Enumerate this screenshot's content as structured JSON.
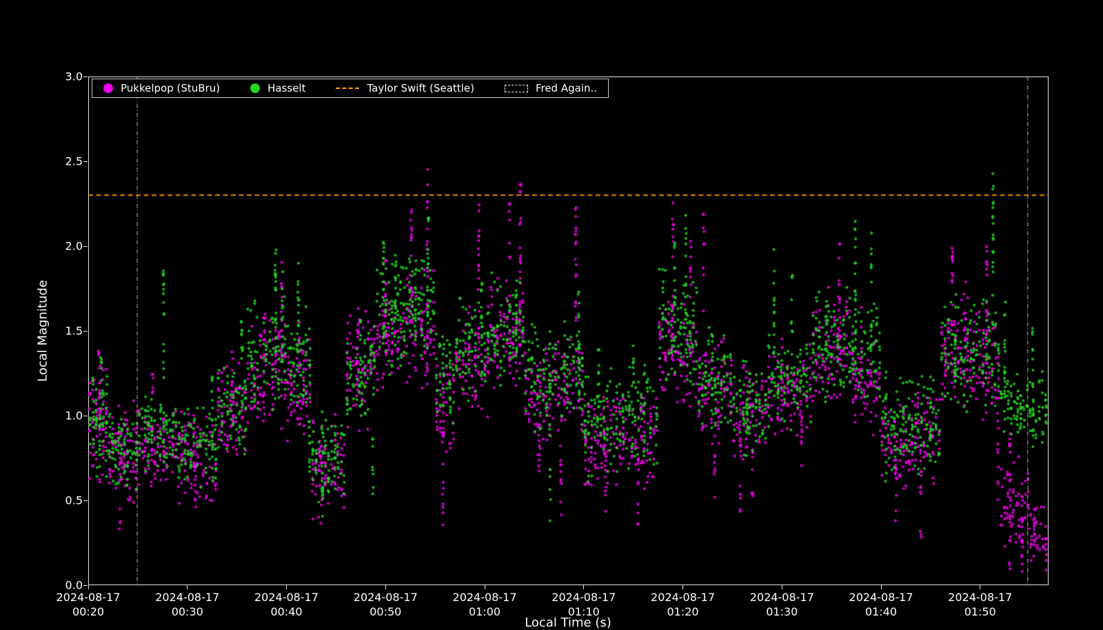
{
  "axes": {
    "xlabel": "Local Time (s)",
    "ylabel": "Local Magnitude",
    "x_ticks": [
      {
        "line1": "2024-08-17",
        "line2": "00:20",
        "minutes": 0
      },
      {
        "line1": "2024-08-17",
        "line2": "00:30",
        "minutes": 10
      },
      {
        "line1": "2024-08-17",
        "line2": "00:40",
        "minutes": 20
      },
      {
        "line1": "2024-08-17",
        "line2": "00:50",
        "minutes": 30
      },
      {
        "line1": "2024-08-17",
        "line2": "01:00",
        "minutes": 40
      },
      {
        "line1": "2024-08-17",
        "line2": "01:10",
        "minutes": 50
      },
      {
        "line1": "2024-08-17",
        "line2": "01:20",
        "minutes": 60
      },
      {
        "line1": "2024-08-17",
        "line2": "01:30",
        "minutes": 70
      },
      {
        "line1": "2024-08-17",
        "line2": "01:40",
        "minutes": 80
      },
      {
        "line1": "2024-08-17",
        "line2": "01:50",
        "minutes": 90
      }
    ],
    "y_ticks": [
      {
        "label": "0.0",
        "value": 0.0
      },
      {
        "label": "0.5",
        "value": 0.5
      },
      {
        "label": "1.0",
        "value": 1.0
      },
      {
        "label": "1.5",
        "value": 1.5
      },
      {
        "label": "2.0",
        "value": 2.0
      },
      {
        "label": "2.5",
        "value": 2.5
      },
      {
        "label": "3.0",
        "value": 3.0
      }
    ]
  },
  "legend": {
    "items": [
      {
        "marker": "dot",
        "color": "#f400ee",
        "label": "Pukkelpop (StuBru)"
      },
      {
        "marker": "dot",
        "color": "#23d423",
        "label": "Hasselt"
      },
      {
        "marker": "dash",
        "color": "#ffa500",
        "label": "Taylor Swift (Seattle)"
      },
      {
        "marker": "box",
        "color": "#f2f2f2",
        "label": "Fred Again.."
      }
    ]
  },
  "chart_data": {
    "type": "scatter",
    "title": "",
    "xlabel": "Local Time (s)",
    "ylabel": "Local Magnitude",
    "x_unit": "minutes after 2024-08-17 00:20",
    "xlim_minutes": [
      0,
      96.9
    ],
    "ylim": [
      0,
      3
    ],
    "grid": false,
    "legend_position": "upper left",
    "marker_radius_px": 2.1,
    "marker_alpha": 0.82,
    "reference_line": {
      "label": "Taylor Swift (Seattle)",
      "value": 2.3,
      "color": "#ffa500",
      "style": "dashed",
      "linewidth": 1.8
    },
    "span": {
      "label": "Fred Again..",
      "start_minutes": 4.94,
      "end_minutes": 94.8,
      "edge_color": "#c8c8c8",
      "style": "dashdot",
      "linewidth": 1
    },
    "series": [
      {
        "name": "Pukkelpop (StuBru)",
        "color": "#f400ee",
        "baseline_segments": [
          [
            0,
            2,
            0.55,
            1.4,
            70
          ],
          [
            2,
            5,
            0.45,
            1.1,
            85
          ],
          [
            5,
            9,
            0.55,
            1.05,
            95
          ],
          [
            9,
            13,
            0.45,
            1.05,
            95
          ],
          [
            13,
            16,
            0.7,
            1.35,
            70
          ],
          [
            16,
            20,
            0.9,
            1.6,
            90
          ],
          [
            20,
            22.5,
            0.8,
            1.5,
            60
          ],
          [
            22.5,
            26,
            0.35,
            1.05,
            80
          ],
          [
            26,
            29,
            0.8,
            1.65,
            70
          ],
          [
            29,
            32,
            1.1,
            1.8,
            70
          ],
          [
            32,
            35,
            1.1,
            1.9,
            70
          ],
          [
            35,
            37,
            0.7,
            1.4,
            45
          ],
          [
            37,
            40.5,
            0.95,
            1.7,
            80
          ],
          [
            40.5,
            44,
            1.1,
            1.85,
            85
          ],
          [
            44,
            47,
            0.75,
            1.45,
            70
          ],
          [
            47,
            50,
            0.85,
            1.5,
            70
          ],
          [
            50,
            53.5,
            0.5,
            1.15,
            80
          ],
          [
            53.5,
            57.5,
            0.55,
            1.2,
            85
          ],
          [
            57.5,
            61.5,
            1.0,
            1.8,
            90
          ],
          [
            61.5,
            65,
            0.8,
            1.5,
            80
          ],
          [
            65,
            68.5,
            0.7,
            1.3,
            75
          ],
          [
            68.5,
            73,
            0.85,
            1.45,
            90
          ],
          [
            73,
            77,
            1.0,
            1.8,
            90
          ],
          [
            77,
            80,
            0.85,
            1.5,
            65
          ],
          [
            80,
            83,
            0.55,
            1.15,
            65
          ],
          [
            83,
            86,
            0.55,
            1.2,
            65
          ],
          [
            86,
            89.5,
            1.0,
            1.75,
            80
          ],
          [
            89.5,
            92,
            0.9,
            1.7,
            55
          ],
          [
            92,
            95,
            0.15,
            0.8,
            65
          ],
          [
            95,
            96.8,
            0.05,
            0.5,
            35
          ]
        ],
        "burst_columns": [
          [
            1.1,
            0.9,
            1.42,
            12
          ],
          [
            3.2,
            0.33,
            0.75,
            10
          ],
          [
            6.5,
            0.75,
            1.25,
            10
          ],
          [
            10.8,
            0.27,
            0.7,
            10
          ],
          [
            14.5,
            0.9,
            1.38,
            10
          ],
          [
            17.8,
            1.0,
            1.6,
            12
          ],
          [
            19.5,
            1.1,
            1.95,
            14
          ],
          [
            21.3,
            0.9,
            1.55,
            12
          ],
          [
            23.5,
            0.3,
            0.95,
            10
          ],
          [
            27.2,
            1.0,
            1.68,
            14
          ],
          [
            30.0,
            1.2,
            1.95,
            14
          ],
          [
            32.6,
            1.35,
            2.27,
            18
          ],
          [
            34.2,
            1.2,
            2.46,
            22
          ],
          [
            35.8,
            0.3,
            0.95,
            14
          ],
          [
            39.4,
            1.3,
            2.27,
            18
          ],
          [
            42.5,
            1.3,
            2.28,
            16
          ],
          [
            43.6,
            1.4,
            2.4,
            20
          ],
          [
            45.5,
            0.55,
            1.1,
            10
          ],
          [
            47.7,
            0.4,
            0.9,
            10
          ],
          [
            49.2,
            1.3,
            2.3,
            18
          ],
          [
            52.2,
            0.32,
            0.85,
            12
          ],
          [
            55.5,
            0.3,
            0.8,
            10
          ],
          [
            59.0,
            1.3,
            2.29,
            20
          ],
          [
            60.8,
            1.2,
            2.05,
            14
          ],
          [
            62.1,
            1.1,
            2.2,
            12
          ],
          [
            63.2,
            0.45,
            0.9,
            8
          ],
          [
            65.8,
            0.4,
            0.85,
            8
          ],
          [
            67.0,
            0.45,
            0.95,
            8
          ],
          [
            70.0,
            1.0,
            1.5,
            10
          ],
          [
            72.0,
            0.5,
            1.0,
            10
          ],
          [
            75.8,
            1.3,
            2.16,
            18
          ],
          [
            78.0,
            1.1,
            1.7,
            12
          ],
          [
            81.5,
            0.3,
            0.85,
            12
          ],
          [
            84.0,
            0.25,
            0.8,
            12
          ],
          [
            87.2,
            1.2,
            2.0,
            16
          ],
          [
            88.5,
            1.1,
            1.8,
            12
          ],
          [
            90.7,
            1.3,
            2.02,
            16
          ],
          [
            91.8,
            0.5,
            1.3,
            12
          ],
          [
            93.0,
            0.05,
            0.9,
            18
          ],
          [
            94.2,
            0.03,
            0.6,
            14
          ],
          [
            95.5,
            0.05,
            0.45,
            10
          ]
        ]
      },
      {
        "name": "Hasselt",
        "color": "#23d423",
        "baseline_segments": [
          [
            0,
            2,
            0.6,
            1.3,
            60
          ],
          [
            2,
            5,
            0.55,
            1.05,
            75
          ],
          [
            5,
            9,
            0.6,
            1.15,
            95
          ],
          [
            9,
            13,
            0.55,
            1.1,
            95
          ],
          [
            13,
            16,
            0.75,
            1.3,
            70
          ],
          [
            16,
            20,
            1.0,
            1.75,
            90
          ],
          [
            20,
            22.5,
            0.9,
            1.7,
            60
          ],
          [
            22.5,
            26,
            0.45,
            1.05,
            80
          ],
          [
            26,
            29,
            0.85,
            1.55,
            70
          ],
          [
            29,
            32,
            1.2,
            1.95,
            75
          ],
          [
            32,
            35,
            1.3,
            2.0,
            70
          ],
          [
            35,
            37,
            0.9,
            1.6,
            45
          ],
          [
            37,
            40.5,
            1.05,
            1.8,
            80
          ],
          [
            40.5,
            44,
            1.15,
            1.85,
            80
          ],
          [
            44,
            47,
            0.85,
            1.55,
            70
          ],
          [
            47,
            50,
            0.9,
            1.6,
            70
          ],
          [
            50,
            53.5,
            0.6,
            1.3,
            80
          ],
          [
            53.5,
            57.5,
            0.65,
            1.35,
            85
          ],
          [
            57.5,
            61.5,
            1.1,
            1.9,
            90
          ],
          [
            61.5,
            65,
            0.85,
            1.55,
            80
          ],
          [
            65,
            68.5,
            0.75,
            1.35,
            75
          ],
          [
            68.5,
            73,
            0.9,
            1.55,
            90
          ],
          [
            73,
            77,
            1.05,
            1.8,
            90
          ],
          [
            77,
            80,
            1.0,
            1.75,
            65
          ],
          [
            80,
            83,
            0.6,
            1.25,
            65
          ],
          [
            83,
            86,
            0.6,
            1.25,
            65
          ],
          [
            86,
            89.5,
            1.0,
            1.7,
            80
          ],
          [
            89.5,
            92,
            1.0,
            1.8,
            55
          ],
          [
            92,
            96.8,
            0.8,
            1.3,
            110
          ]
        ],
        "burst_columns": [
          [
            1.3,
            0.9,
            1.35,
            10
          ],
          [
            7.6,
            1.2,
            1.95,
            16
          ],
          [
            12.5,
            0.9,
            1.32,
            8
          ],
          [
            15.5,
            1.0,
            1.62,
            12
          ],
          [
            18.9,
            1.3,
            2.0,
            16
          ],
          [
            19.6,
            1.2,
            1.85,
            12
          ],
          [
            21.2,
            1.2,
            1.92,
            14
          ],
          [
            22.3,
            0.5,
            1.0,
            10
          ],
          [
            23.7,
            0.35,
            0.9,
            12
          ],
          [
            27.5,
            1.0,
            1.58,
            12
          ],
          [
            28.7,
            0.45,
            0.95,
            8
          ],
          [
            29.8,
            1.4,
            2.06,
            16
          ],
          [
            31.0,
            1.3,
            1.95,
            12
          ],
          [
            33.0,
            1.4,
            1.95,
            12
          ],
          [
            34.3,
            1.5,
            2.2,
            16
          ],
          [
            36.5,
            0.9,
            1.55,
            10
          ],
          [
            39.7,
            1.2,
            1.85,
            12
          ],
          [
            43.2,
            1.3,
            1.9,
            12
          ],
          [
            46.6,
            0.3,
            1.3,
            16
          ],
          [
            49.5,
            1.2,
            1.75,
            12
          ],
          [
            51.5,
            1.0,
            1.45,
            10
          ],
          [
            55.0,
            1.0,
            1.42,
            10
          ],
          [
            59.2,
            1.4,
            2.1,
            16
          ],
          [
            60.3,
            1.3,
            2.22,
            18
          ],
          [
            63.0,
            1.0,
            1.58,
            10
          ],
          [
            66.5,
            0.9,
            1.32,
            8
          ],
          [
            69.2,
            1.2,
            1.98,
            16
          ],
          [
            71.0,
            1.1,
            1.9,
            12
          ],
          [
            74.5,
            1.1,
            1.75,
            12
          ],
          [
            77.4,
            1.4,
            2.21,
            18
          ],
          [
            79.0,
            1.2,
            2.1,
            14
          ],
          [
            80.5,
            0.6,
            1.3,
            10
          ],
          [
            85.0,
            0.8,
            1.25,
            8
          ],
          [
            87.5,
            1.1,
            1.72,
            12
          ],
          [
            91.3,
            1.5,
            2.44,
            20
          ],
          [
            92.5,
            1.0,
            1.75,
            12
          ],
          [
            95.3,
            0.9,
            1.55,
            12
          ]
        ]
      }
    ]
  }
}
